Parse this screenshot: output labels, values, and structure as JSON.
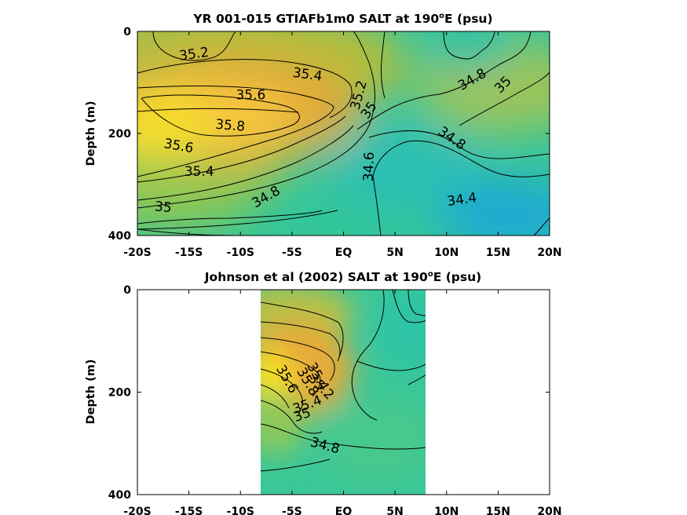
{
  "chart_data": [
    {
      "type": "contour",
      "title_main": "YR 001-015 GTIAFb1m0 SALT at 190",
      "title_sup": "o",
      "title_tail": "E (psu)",
      "ylabel": "Depth (m)",
      "xlim": [
        -20,
        20
      ],
      "ylim": [
        400,
        0
      ],
      "x_ticks": [
        "-20S",
        "-15S",
        "-10S",
        "-5S",
        "EQ",
        "5N",
        "10N",
        "15N",
        "20N"
      ],
      "y_ticks": [
        "0",
        "200",
        "400"
      ],
      "contour_labels": [
        {
          "text": "35.2",
          "x": -14.5,
          "y": 45,
          "angle": -8
        },
        {
          "text": "35.4",
          "x": -3.5,
          "y": 85,
          "angle": 8
        },
        {
          "text": "35.6",
          "x": -9,
          "y": 125,
          "angle": 0
        },
        {
          "text": "35.8",
          "x": -11,
          "y": 185,
          "angle": 5
        },
        {
          "text": "35.6",
          "x": -16,
          "y": 225,
          "angle": 10
        },
        {
          "text": "35.4",
          "x": -14,
          "y": 275,
          "angle": 0
        },
        {
          "text": "35",
          "x": -17.5,
          "y": 345,
          "angle": 5
        },
        {
          "text": "34.8",
          "x": -7.5,
          "y": 325,
          "angle": -30
        },
        {
          "text": "35.2",
          "x": 1.5,
          "y": 125,
          "angle": -75
        },
        {
          "text": "35",
          "x": 2.5,
          "y": 155,
          "angle": -55
        },
        {
          "text": "34.6",
          "x": 2.5,
          "y": 265,
          "angle": -88
        },
        {
          "text": "34.8",
          "x": 12.5,
          "y": 95,
          "angle": -30
        },
        {
          "text": "35",
          "x": 15.5,
          "y": 105,
          "angle": -45
        },
        {
          "text": "34.8",
          "x": 10.5,
          "y": 210,
          "angle": 35
        },
        {
          "text": "34.4",
          "x": 11.5,
          "y": 330,
          "angle": -8
        }
      ]
    },
    {
      "type": "contour",
      "title_main": "Johnson et al (2002) SALT at 190",
      "title_sup": "o",
      "title_tail": "E (psu)",
      "ylabel": "Depth (m)",
      "xlim": [
        -20,
        20
      ],
      "ylim": [
        400,
        0
      ],
      "data_x_range": [
        -8,
        8
      ],
      "x_ticks": [
        "-20S",
        "-15S",
        "-10S",
        "-5S",
        "EQ",
        "5N",
        "10N",
        "15N",
        "20N"
      ],
      "y_ticks": [
        "0",
        "200",
        "400"
      ],
      "contour_labels": [
        {
          "text": "35.6",
          "x": -5.5,
          "y": 175,
          "angle": 60
        },
        {
          "text": "35.8",
          "x": -3.5,
          "y": 180,
          "angle": 60
        },
        {
          "text": "35.4",
          "x": -2.5,
          "y": 170,
          "angle": 60
        },
        {
          "text": "35.2",
          "x": -2.2,
          "y": 190,
          "angle": 45
        },
        {
          "text": "35.4",
          "x": -3.5,
          "y": 225,
          "angle": -20
        },
        {
          "text": "35",
          "x": -4,
          "y": 245,
          "angle": -20
        },
        {
          "text": "34.8",
          "x": -1.8,
          "y": 305,
          "angle": 15
        }
      ]
    }
  ]
}
